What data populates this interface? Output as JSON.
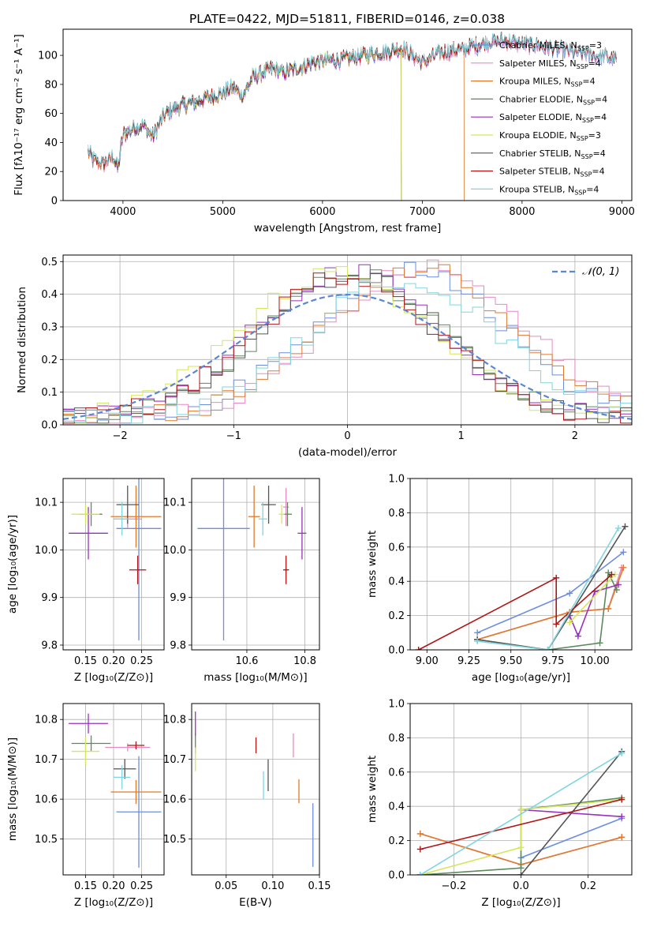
{
  "title": "PLATE=0422, MJD=51811, FIBERID=0146, z=0.038",
  "colors": {
    "Chabrier MILES": "#6c8ee0",
    "Salpeter MILES": "#e78ac3",
    "Kroupa MILES": "#e07a2b",
    "Chabrier ELODIE": "#5b8a5b",
    "Salpeter ELODIE": "#9a2fc0",
    "Kroupa ELODIE": "#d4e65a",
    "Chabrier STELIB": "#555555",
    "Salpeter STELIB": "#b01515",
    "Kroupa STELIB": "#7fd6e0"
  },
  "chart_data": [
    {
      "type": "line",
      "name": "spectrum",
      "xlabel": "wavelength [Angstrom, rest frame]",
      "ylabel": "Flux [fλ10⁻¹⁷ erg cm⁻² s⁻¹ A⁻¹]",
      "xlim": [
        3400,
        9100
      ],
      "ylim": [
        0,
        118
      ],
      "xticks": [
        4000,
        5000,
        6000,
        7000,
        8000,
        9000
      ],
      "yticks": [
        0,
        20,
        40,
        60,
        80,
        100
      ],
      "grid": false,
      "legend": "top-right",
      "continuum": {
        "x": [
          3650,
          3700,
          3800,
          3900,
          3950,
          4000,
          4100,
          4200,
          4300,
          4400,
          4500,
          4600,
          4700,
          4800,
          4900,
          5000,
          5100,
          5200,
          5300,
          5400,
          5500,
          5600,
          5700,
          5800,
          5900,
          6000,
          6200,
          6400,
          6600,
          6800,
          7000,
          7200,
          7400,
          7600,
          7800,
          8000,
          8200,
          8400,
          8600,
          8800,
          8950
        ],
        "y": [
          34,
          28,
          25,
          30,
          22,
          45,
          50,
          52,
          44,
          58,
          63,
          66,
          67,
          70,
          72,
          74,
          78,
          72,
          85,
          88,
          91,
          88,
          90,
          92,
          95,
          96,
          97,
          100,
          102,
          105,
          95,
          102,
          104,
          108,
          110,
          108,
          106,
          104,
          101,
          99,
          97
        ]
      },
      "series": [
        {
          "name": "Chabrier MILES, N_SSP=3",
          "legend_main": "Chabrier MILES, N",
          "legend_sub": "SSP",
          "legend_tail": "=3",
          "color": "#6c8ee0",
          "range": [
            3650,
            8950
          ]
        },
        {
          "name": "Salpeter MILES, N_SSP=4",
          "legend_main": "Salpeter MILES, N",
          "legend_sub": "SSP",
          "legend_tail": "=4",
          "color": "#e78ac3",
          "range": [
            3650,
            8950
          ]
        },
        {
          "name": "Kroupa MILES, N_SSP=4",
          "legend_main": "Kroupa MILES, N",
          "legend_sub": "SSP",
          "legend_tail": "=4",
          "color": "#e07a2b",
          "range": [
            3650,
            7420
          ]
        },
        {
          "name": "Chabrier ELODIE, N_SSP=4",
          "legend_main": "Chabrier ELODIE, N",
          "legend_sub": "SSP",
          "legend_tail": "=4",
          "color": "#5b8a5b",
          "range": [
            3900,
            6790
          ]
        },
        {
          "name": "Salpeter ELODIE, N_SSP=4",
          "legend_main": "Salpeter ELODIE, N",
          "legend_sub": "SSP",
          "legend_tail": "=4",
          "color": "#9a2fc0",
          "range": [
            3900,
            6790
          ]
        },
        {
          "name": "Kroupa ELODIE, N_SSP=3",
          "legend_main": "Kroupa ELODIE, N",
          "legend_sub": "SSP",
          "legend_tail": "=3",
          "color": "#d4e65a",
          "range": [
            3900,
            6790
          ]
        },
        {
          "name": "Chabrier STELIB, N_SSP=4",
          "legend_main": "Chabrier STELIB, N",
          "legend_sub": "SSP",
          "legend_tail": "=4",
          "color": "#555555",
          "range": [
            3650,
            8950
          ]
        },
        {
          "name": "Salpeter STELIB, N_SSP=4",
          "legend_main": "Salpeter STELIB, N",
          "legend_sub": "SSP",
          "legend_tail": "=4",
          "color": "#b01515",
          "range": [
            3650,
            8950
          ]
        },
        {
          "name": "Kroupa STELIB, N_SSP=4",
          "legend_main": "Kroupa STELIB, N",
          "legend_sub": "SSP",
          "legend_tail": "=4",
          "color": "#7fd6e0",
          "range": [
            3650,
            8950
          ]
        }
      ]
    },
    {
      "type": "step",
      "name": "residual-histogram",
      "xlabel": "(data-model)/error",
      "ylabel": "Normed distribution",
      "xlim": [
        -2.5,
        2.5
      ],
      "ylim": [
        0,
        0.52
      ],
      "xticks": [
        -2,
        -1,
        0,
        1,
        2
      ],
      "xtick_labels": [
        "−2",
        "−1",
        "0",
        "1",
        "2"
      ],
      "yticks": [
        0.0,
        0.1,
        0.2,
        0.3,
        0.4,
        0.5
      ],
      "ytick_labels": [
        "0.0",
        "0.1",
        "0.2",
        "0.3",
        "0.4",
        "0.5"
      ],
      "grid": true,
      "legend": "top-right",
      "gaussian_label": "𝒩(0, 1)",
      "gaussian": {
        "mu": 0,
        "sigma": 1,
        "color": "#5b86d6"
      },
      "bin_width": 0.1,
      "centers": {
        "narrow": 0.05,
        "wide": 0.55,
        "mid": 0.0
      },
      "series": [
        {
          "color": "#6c8ee0",
          "peak": 0.47,
          "shift": 0.55,
          "width": 0.82
        },
        {
          "color": "#e78ac3",
          "peak": 0.46,
          "shift": 0.7,
          "width": 0.85
        },
        {
          "color": "#e07a2b",
          "peak": 0.46,
          "shift": 0.65,
          "width": 0.85
        },
        {
          "color": "#5b8a5b",
          "peak": 0.44,
          "shift": 0.05,
          "width": 0.78
        },
        {
          "color": "#9a2fc0",
          "peak": 0.45,
          "shift": 0.0,
          "width": 0.8
        },
        {
          "color": "#d4e65a",
          "peak": 0.44,
          "shift": -0.1,
          "width": 0.85
        },
        {
          "color": "#555555",
          "peak": 0.44,
          "shift": 0.05,
          "width": 0.78
        },
        {
          "color": "#b01515",
          "peak": 0.44,
          "shift": 0.0,
          "width": 0.8
        },
        {
          "color": "#7fd6e0",
          "peak": 0.43,
          "shift": 0.5,
          "width": 0.82
        }
      ]
    },
    {
      "type": "scatter",
      "name": "age-vs-Z",
      "xlabel": "Z [log₁₀(Z/Z⊙)]",
      "ylabel": "age  [log₁₀(age/yr)]",
      "xlim": [
        0.11,
        0.29
      ],
      "ylim": [
        9.79,
        10.15
      ],
      "xticks": [
        0.15,
        0.2,
        0.25
      ],
      "xtick_labels": [
        "0.15",
        "0.20",
        "0.25"
      ],
      "yticks": [
        9.8,
        9.9,
        10.0,
        10.1
      ],
      "ytick_labels": [
        "9.8",
        "9.9",
        "10.0",
        "10.1"
      ],
      "grid": true,
      "points": [
        {
          "color": "#6c8ee0",
          "x": 0.245,
          "xerr": 0.04,
          "y": 10.045,
          "yerr": 0.235
        },
        {
          "color": "#e78ac3",
          "x": 0.225,
          "xerr": 0.025,
          "y": 10.065,
          "yerr": 0.02
        },
        {
          "color": "#e07a2b",
          "x": 0.24,
          "xerr": 0.045,
          "y": 10.07,
          "yerr": 0.065
        },
        {
          "color": "#5b8a5b",
          "x": 0.16,
          "xerr": 0.02,
          "y": 10.075,
          "yerr": 0.025
        },
        {
          "color": "#9a2fc0",
          "x": 0.155,
          "xerr": 0.035,
          "y": 10.035,
          "yerr": 0.055
        },
        {
          "color": "#d4e65a",
          "x": 0.15,
          "xerr": 0.025,
          "y": 10.075,
          "yerr": 0.02
        },
        {
          "color": "#555555",
          "x": 0.225,
          "xerr": 0.02,
          "y": 10.095,
          "yerr": 0.04
        },
        {
          "color": "#b01515",
          "x": 0.243,
          "xerr": 0.015,
          "y": 9.958,
          "yerr": 0.03
        },
        {
          "color": "#7fd6e0",
          "x": 0.215,
          "xerr": 0.015,
          "y": 10.065,
          "yerr": 0.035
        }
      ]
    },
    {
      "type": "scatter",
      "name": "age-vs-mass",
      "xlabel": "mass [log₁₀(M/M⊙)]",
      "ylabel": "",
      "xlim": [
        10.41,
        10.85
      ],
      "ylim": [
        9.79,
        10.15
      ],
      "xticks": [
        10.6,
        10.8
      ],
      "xtick_labels": [
        "10.6",
        "10.8"
      ],
      "yticks": [
        9.8,
        9.9,
        10.0,
        10.1
      ],
      "ytick_labels": [
        "9.8",
        "9.9",
        "10.0",
        "10.1"
      ],
      "grid": true,
      "points": [
        {
          "color": "#6c8ee0",
          "x": 10.52,
          "xerr": 0.09,
          "y": 10.045,
          "yerr": 0.235
        },
        {
          "color": "#e78ac3",
          "x": 10.735,
          "xerr": 0.01,
          "y": 10.09,
          "yerr": 0.04
        },
        {
          "color": "#e07a2b",
          "x": 10.625,
          "xerr": 0.02,
          "y": 10.07,
          "yerr": 0.065
        },
        {
          "color": "#5b8a5b",
          "x": 10.74,
          "xerr": 0.015,
          "y": 10.075,
          "yerr": 0.025
        },
        {
          "color": "#9a2fc0",
          "x": 10.79,
          "xerr": 0.015,
          "y": 10.035,
          "yerr": 0.055
        },
        {
          "color": "#d4e65a",
          "x": 10.72,
          "xerr": 0.01,
          "y": 10.075,
          "yerr": 0.02
        },
        {
          "color": "#555555",
          "x": 10.675,
          "xerr": 0.025,
          "y": 10.095,
          "yerr": 0.04
        },
        {
          "color": "#b01515",
          "x": 10.735,
          "xerr": 0.01,
          "y": 9.958,
          "yerr": 0.03
        },
        {
          "color": "#7fd6e0",
          "x": 10.655,
          "xerr": 0.015,
          "y": 10.065,
          "yerr": 0.035
        }
      ]
    },
    {
      "type": "line",
      "name": "mass-weight-vs-age",
      "xlabel": "age  [log₁₀(age/yr)]",
      "ylabel": "mass weight",
      "xlim": [
        8.9,
        10.22
      ],
      "ylim": [
        0,
        1.0
      ],
      "xticks": [
        9.0,
        9.25,
        9.5,
        9.75,
        10.0
      ],
      "xtick_labels": [
        "9.00",
        "9.25",
        "9.50",
        "9.75",
        "10.00"
      ],
      "yticks": [
        0.0,
        0.2,
        0.4,
        0.6,
        0.8,
        1.0
      ],
      "ytick_labels": [
        "0.0",
        "0.2",
        "0.4",
        "0.6",
        "0.8",
        "1.0"
      ],
      "grid": true,
      "series": [
        {
          "color": "#6c8ee0",
          "x": [
            9.3,
            9.85,
            10.17
          ],
          "y": [
            0.1,
            0.33,
            0.57
          ]
        },
        {
          "color": "#e78ac3",
          "x": [
            9.3,
            9.85,
            10.08,
            10.16
          ],
          "y": [
            0.06,
            0.22,
            0.24,
            0.48
          ]
        },
        {
          "color": "#e07a2b",
          "x": [
            9.3,
            9.85,
            10.08,
            10.17
          ],
          "y": [
            0.06,
            0.22,
            0.24,
            0.48
          ]
        },
        {
          "color": "#5b8a5b",
          "x": [
            9.3,
            9.72,
            10.03,
            10.08,
            10.13
          ],
          "y": [
            0.06,
            0.0,
            0.04,
            0.45,
            0.35
          ]
        },
        {
          "color": "#9a2fc0",
          "x": [
            9.85,
            9.9,
            10.0,
            10.14
          ],
          "y": [
            0.2,
            0.08,
            0.34,
            0.38
          ]
        },
        {
          "color": "#d4e65a",
          "x": [
            9.85,
            10.12
          ],
          "y": [
            0.16,
            0.44
          ]
        },
        {
          "color": "#555555",
          "x": [
            9.3,
            9.72,
            10.18
          ],
          "y": [
            0.06,
            0.0,
            0.72
          ]
        },
        {
          "color": "#b01515",
          "x": [
            8.95,
            9.77,
            9.77,
            10.1
          ],
          "y": [
            0.0,
            0.42,
            0.15,
            0.44
          ]
        },
        {
          "color": "#7fd6e0",
          "x": [
            9.3,
            9.72,
            10.14
          ],
          "y": [
            0.05,
            0.0,
            0.71
          ]
        }
      ]
    },
    {
      "type": "scatter",
      "name": "mass-vs-Z",
      "xlabel": "Z [log₁₀(Z/Z⊙)]",
      "ylabel": "mass [log₁₀(M/M⊙)]",
      "xlim": [
        0.11,
        0.29
      ],
      "ylim": [
        10.41,
        10.84
      ],
      "xticks": [
        0.15,
        0.2,
        0.25
      ],
      "xtick_labels": [
        "0.15",
        "0.20",
        "0.25"
      ],
      "yticks": [
        10.5,
        10.6,
        10.7,
        10.8
      ],
      "ytick_labels": [
        "10.5",
        "10.6",
        "10.7",
        "10.8"
      ],
      "grid": true,
      "points": [
        {
          "color": "#6c8ee0",
          "x": 0.245,
          "xerr": 0.04,
          "y": 10.568,
          "yerr": 0.14
        },
        {
          "color": "#e78ac3",
          "x": 0.225,
          "xerr": 0.04,
          "y": 10.73,
          "yerr": 0.01
        },
        {
          "color": "#e07a2b",
          "x": 0.24,
          "xerr": 0.045,
          "y": 10.618,
          "yerr": 0.03
        },
        {
          "color": "#5b8a5b",
          "x": 0.16,
          "xerr": 0.035,
          "y": 10.74,
          "yerr": 0.02
        },
        {
          "color": "#9a2fc0",
          "x": 0.155,
          "xerr": 0.035,
          "y": 10.79,
          "yerr": 0.025
        },
        {
          "color": "#d4e65a",
          "x": 0.15,
          "xerr": 0.025,
          "y": 10.72,
          "yerr": 0.035
        },
        {
          "color": "#555555",
          "x": 0.22,
          "xerr": 0.02,
          "y": 10.676,
          "yerr": 0.025
        },
        {
          "color": "#b01515",
          "x": 0.24,
          "xerr": 0.015,
          "y": 10.735,
          "yerr": 0.01
        },
        {
          "color": "#7fd6e0",
          "x": 0.215,
          "xerr": 0.015,
          "y": 10.655,
          "yerr": 0.03
        }
      ]
    },
    {
      "type": "scatter",
      "name": "mass-vs-EBV",
      "xlabel": "E(B-V)",
      "ylabel": "",
      "xlim": [
        0.013,
        0.15
      ],
      "ylim": [
        10.41,
        10.84
      ],
      "xticks": [
        0.05,
        0.1,
        0.15
      ],
      "xtick_labels": [
        "0.05",
        "0.10",
        "0.15"
      ],
      "yticks": [
        10.5,
        10.6,
        10.7,
        10.8
      ],
      "ytick_labels": [
        "10.5",
        "10.6",
        "10.7",
        "10.8"
      ],
      "grid": true,
      "points": [
        {
          "color": "#6c8ee0",
          "x": 0.143,
          "xerr": 0.0,
          "y": 10.51,
          "yerr": 0.08
        },
        {
          "color": "#e78ac3",
          "x": 0.122,
          "xerr": 0.0,
          "y": 10.735,
          "yerr": 0.03
        },
        {
          "color": "#e07a2b",
          "x": 0.128,
          "xerr": 0.0,
          "y": 10.62,
          "yerr": 0.03
        },
        {
          "color": "#5b8a5b",
          "x": 0.017,
          "xerr": 0.0,
          "y": 10.74,
          "yerr": 0.025
        },
        {
          "color": "#9a2fc0",
          "x": 0.017,
          "xerr": 0.0,
          "y": 10.79,
          "yerr": 0.03
        },
        {
          "color": "#d4e65a",
          "x": 0.017,
          "xerr": 0.0,
          "y": 10.7,
          "yerr": 0.03
        },
        {
          "color": "#555555",
          "x": 0.095,
          "xerr": 0.0,
          "y": 10.66,
          "yerr": 0.04
        },
        {
          "color": "#b01515",
          "x": 0.082,
          "xerr": 0.0,
          "y": 10.735,
          "yerr": 0.02
        },
        {
          "color": "#7fd6e0",
          "x": 0.09,
          "xerr": 0.0,
          "y": 10.635,
          "yerr": 0.035
        }
      ]
    },
    {
      "type": "line",
      "name": "mass-weight-vs-Z",
      "xlabel": "Z [log₁₀(Z/Z⊙)]",
      "ylabel": "mass weight",
      "xlim": [
        -0.33,
        0.33
      ],
      "ylim": [
        0,
        1.0
      ],
      "xticks": [
        -0.2,
        0.0,
        0.2
      ],
      "xtick_labels": [
        "−0.2",
        "0.0",
        "0.2"
      ],
      "yticks": [
        0.0,
        0.2,
        0.4,
        0.6,
        0.8,
        1.0
      ],
      "ytick_labels": [
        "0.0",
        "0.2",
        "0.4",
        "0.6",
        "0.8",
        "1.0"
      ],
      "grid": true,
      "series": [
        {
          "color": "#6c8ee0",
          "x": [
            0.0,
            0.3
          ],
          "y": [
            0.1,
            0.33
          ]
        },
        {
          "color": "#e78ac3",
          "x": [
            -0.3,
            0.0,
            0.3
          ],
          "y": [
            0.24,
            0.06,
            0.22
          ]
        },
        {
          "color": "#e07a2b",
          "x": [
            -0.3,
            0.0,
            0.3
          ],
          "y": [
            0.24,
            0.06,
            0.22
          ]
        },
        {
          "color": "#5b8a5b",
          "x": [
            -0.3,
            0.0,
            0.0,
            0.3
          ],
          "y": [
            0.0,
            0.04,
            0.38,
            0.45
          ]
        },
        {
          "color": "#9a2fc0",
          "x": [
            0.0,
            0.3
          ],
          "y": [
            0.38,
            0.34
          ]
        },
        {
          "color": "#d4e65a",
          "x": [
            -0.3,
            0.0,
            0.0,
            0.3
          ],
          "y": [
            0.0,
            0.16,
            0.38,
            0.44
          ]
        },
        {
          "color": "#555555",
          "x": [
            -0.3,
            0.0,
            0.3
          ],
          "y": [
            0.0,
            0.0,
            0.72
          ]
        },
        {
          "color": "#b01515",
          "x": [
            -0.3,
            0.3
          ],
          "y": [
            0.15,
            0.44
          ]
        },
        {
          "color": "#7fd6e0",
          "x": [
            -0.3,
            0.3
          ],
          "y": [
            0.0,
            0.71
          ]
        }
      ]
    }
  ]
}
